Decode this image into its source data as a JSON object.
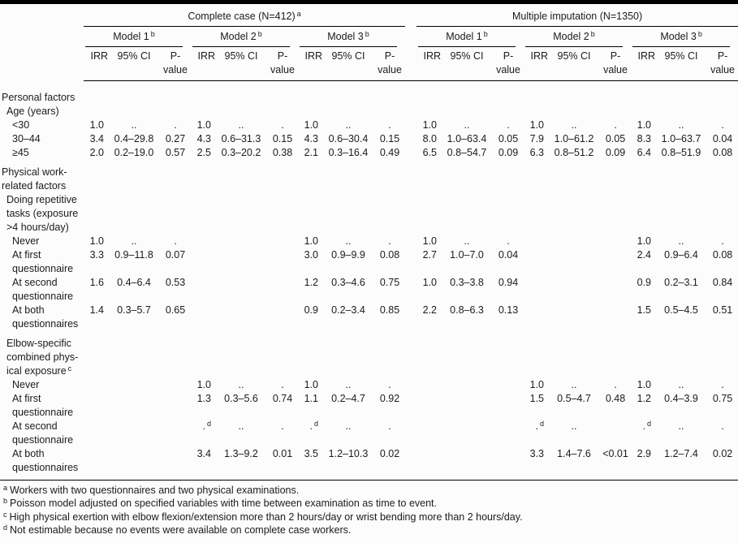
{
  "table": {
    "groups": [
      {
        "text": "Complete case (N=412)",
        "sup": "a",
        "models": [
          {
            "text": "Model 1",
            "sup": "b"
          },
          {
            "text": "Model 2",
            "sup": "b"
          },
          {
            "text": "Model 3",
            "sup": "b"
          }
        ]
      },
      {
        "text": "Multiple imputation (N=1350)",
        "sup": "",
        "models": [
          {
            "text": "Model 1",
            "sup": "b"
          },
          {
            "text": "Model 2",
            "sup": "b"
          },
          {
            "text": "Model 3",
            "sup": "b"
          }
        ]
      }
    ],
    "col_headers": {
      "irr": "IRR",
      "ci": "95% CI",
      "p": "P-\nvalue"
    },
    "rows": [
      {
        "type": "section",
        "indent": 0,
        "label": "Personal factors",
        "sup": ""
      },
      {
        "type": "section",
        "indent": 1,
        "label": "Age (years)",
        "sup": ""
      },
      {
        "type": "data",
        "indent": 2,
        "label": "<30",
        "sup": "",
        "cells": [
          "1.0",
          "..",
          ".",
          "1.0",
          "..",
          ".",
          "1.0",
          "..",
          ".",
          "1.0",
          "..",
          ".",
          "1.0",
          "..",
          ".",
          "1.0",
          "..",
          "."
        ]
      },
      {
        "type": "data",
        "indent": 2,
        "label": "30–44",
        "sup": "",
        "cells": [
          "3.4",
          "0.4–29.8",
          "0.27",
          "4.3",
          "0.6–31.3",
          "0.15",
          "4.3",
          "0.6–30.4",
          "0.15",
          "8.0",
          "1.0–63.4",
          "0.05",
          "7.9",
          "1.0–61.2",
          "0.05",
          "8.3",
          "1.0–63.7",
          "0.04"
        ]
      },
      {
        "type": "data",
        "indent": 2,
        "label": "≥45",
        "sup": "",
        "cells": [
          "2.0",
          "0.2–19.0",
          "0.57",
          "2.5",
          "0.3–20.2",
          "0.38",
          "2.1",
          "0.3–16.4",
          "0.49",
          "6.5",
          "0.8–54.7",
          "0.09",
          "6.3",
          "0.8–51.2",
          "0.09",
          "6.4",
          "0.8–51.9",
          "0.08"
        ]
      },
      {
        "type": "section",
        "indent": 0,
        "label": "Physical work-\nrelated factors",
        "sup": "",
        "space": true
      },
      {
        "type": "section",
        "indent": 1,
        "label": "Doing repetitive\ntasks (exposure\n>4 hours/day)",
        "sup": ""
      },
      {
        "type": "data",
        "indent": 2,
        "label": "Never",
        "sup": "",
        "cells": [
          "1.0",
          "..",
          ".",
          "",
          "",
          "",
          "1.0",
          "..",
          ".",
          "1.0",
          "..",
          ".",
          "",
          "",
          "",
          "1.0",
          "..",
          "."
        ]
      },
      {
        "type": "data",
        "indent": 2,
        "label": "At first\nquestionnaire",
        "sup": "",
        "cells": [
          "3.3",
          "0.9–11.8",
          "0.07",
          "",
          "",
          "",
          "3.0",
          "0.9–9.9",
          "0.08",
          "2.7",
          "1.0–7.0",
          "0.04",
          "",
          "",
          "",
          "2.4",
          "0.9–6.4",
          "0.08"
        ]
      },
      {
        "type": "data",
        "indent": 2,
        "label": "At second\nquestionnaire",
        "sup": "",
        "cells": [
          "1.6",
          "0.4–6.4",
          "0.53",
          "",
          "",
          "",
          "1.2",
          "0.3–4.6",
          "0.75",
          "1.0",
          "0.3–3.8",
          "0.94",
          "",
          "",
          "",
          "0.9",
          "0.2–3.1",
          "0.84"
        ]
      },
      {
        "type": "data",
        "indent": 2,
        "label": "At both\nquestionnaires",
        "sup": "",
        "cells": [
          "1.4",
          "0.3–5.7",
          "0.65",
          "",
          "",
          "",
          "0.9",
          "0.2–3.4",
          "0.85",
          "2.2",
          "0.8–6.3",
          "0.13",
          "",
          "",
          "",
          "1.5",
          "0.5–4.5",
          "0.51"
        ]
      },
      {
        "type": "section",
        "indent": 1,
        "label": "Elbow-specific\ncombined phys-\nical exposure",
        "sup": "c",
        "space": true
      },
      {
        "type": "data",
        "indent": 2,
        "label": "Never",
        "sup": "",
        "cells": [
          "",
          "",
          "",
          "1.0",
          "..",
          ".",
          "1.0",
          "..",
          ".",
          "",
          "",
          "",
          "1.0",
          "..",
          ".",
          "1.0",
          "..",
          "."
        ]
      },
      {
        "type": "data",
        "indent": 2,
        "label": "At first\nquestionnaire",
        "sup": "",
        "cells": [
          "",
          "",
          "",
          "1.3",
          "0.3–5.6",
          "0.74",
          "1.1",
          "0.2–4.7",
          "0.92",
          "",
          "",
          "",
          "1.5",
          "0.5–4.7",
          "0.48",
          "1.2",
          "0.4–3.9",
          "0.75"
        ]
      },
      {
        "type": "data",
        "indent": 2,
        "label": "At second\nquestionnaire",
        "sup": "",
        "cells": [
          "",
          "",
          "",
          {
            "v": ".",
            "sup": "d"
          },
          "..",
          ".",
          {
            "v": ".",
            "sup": "d"
          },
          "..",
          ".",
          "",
          "",
          "",
          {
            "v": ".",
            "sup": "d"
          },
          "..",
          "",
          {
            "v": ".",
            "sup": "d"
          },
          "..",
          "."
        ]
      },
      {
        "type": "data",
        "indent": 2,
        "label": "At both\nquestionnaires",
        "sup": "",
        "cells": [
          "",
          "",
          "",
          "3.4",
          "1.3–9.2",
          "0.01",
          "3.5",
          "1.2–10.3",
          "0.02",
          "",
          "",
          "",
          "3.3",
          "1.4–7.6",
          "<0.01",
          "2.9",
          "1.2–7.4",
          "0.02"
        ]
      }
    ],
    "footnotes": [
      {
        "sup": "a",
        "text": "Workers with two questionnaires and two physical examinations."
      },
      {
        "sup": "b",
        "text": "Poisson model adjusted on specified variables with time between examination as time to event."
      },
      {
        "sup": "c",
        "text": "High physical exertion with elbow flexion/extension more than 2 hours/day or wrist bending more than 2 hours/day."
      },
      {
        "sup": "d",
        "text": "Not estimable because no events were available on complete case workers."
      }
    ]
  }
}
